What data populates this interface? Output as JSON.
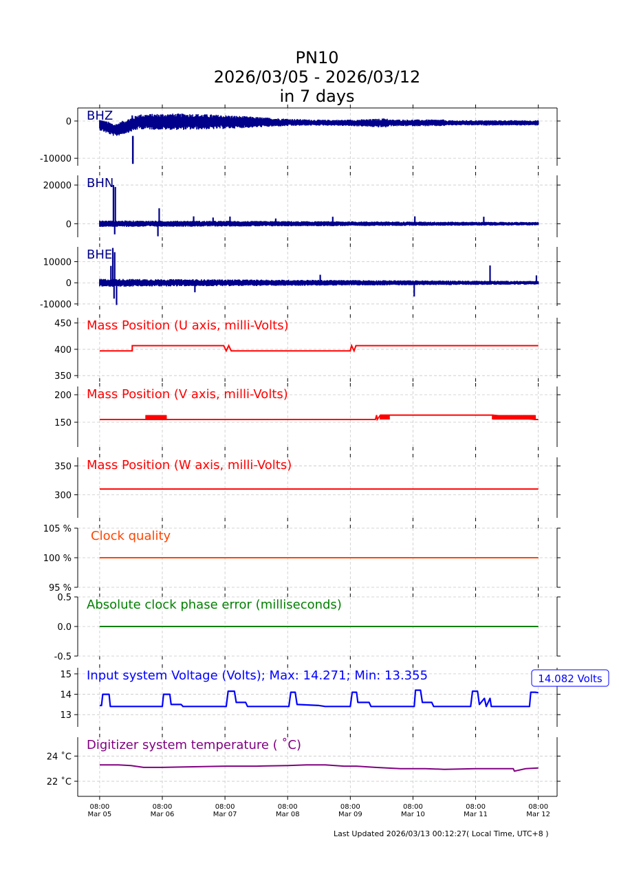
{
  "header": {
    "station": "PN10",
    "date_range": "2026/03/05 - 2026/03/12",
    "period": "in 7 days"
  },
  "footer": {
    "updated": "Last Updated 2026/03/13 00:12:27( Local Time, UTC+8 )"
  },
  "chart_data": [
    {
      "type": "line",
      "title": "BHZ",
      "ylim": [
        -12000,
        3500
      ],
      "yticks": [
        0,
        -10000
      ],
      "ytick_labels": [
        "0",
        "-10000"
      ],
      "color": "#00008b",
      "label_color": "#00008b",
      "grid": true,
      "style": "seismic",
      "baseline": -1000,
      "spikes": [
        [
          0.27,
          -2600
        ],
        [
          0.52,
          1500
        ],
        [
          0.73,
          1300
        ],
        [
          0.81,
          1200
        ],
        [
          0.95,
          900
        ],
        [
          1.0,
          1200
        ],
        [
          0.9,
          900
        ]
      ],
      "envelope_note": "waveform amplitude approx ±2000 counts, dip to -11500 near Mar 05 12:00"
    },
    {
      "type": "line",
      "title": "BHN",
      "ylim": [
        -7000,
        25000
      ],
      "yticks": [
        20000,
        0
      ],
      "ytick_labels": [
        "20000",
        "0"
      ],
      "color": "#00008b",
      "label_color": "#00008b",
      "grid": true,
      "style": "seismic",
      "baseline": 0,
      "spikes": [
        [
          0.22,
          20000
        ],
        [
          0.25,
          19000
        ],
        [
          0.24,
          -5500
        ],
        [
          0.95,
          8000
        ],
        [
          0.93,
          -6500
        ],
        [
          1.5,
          3800
        ],
        [
          1.81,
          3200
        ],
        [
          2.08,
          3700
        ],
        [
          2.81,
          2700
        ],
        [
          3.72,
          3600
        ],
        [
          5.03,
          3800
        ],
        [
          6.13,
          3600
        ]
      ]
    },
    {
      "type": "line",
      "title": "BHE",
      "ylim": [
        -11000,
        17000
      ],
      "yticks": [
        10000,
        0,
        -10000
      ],
      "ytick_labels": [
        "10000",
        "0",
        "-10000"
      ],
      "color": "#00008b",
      "label_color": "#00008b",
      "grid": true,
      "style": "seismic",
      "baseline": 0,
      "spikes": [
        [
          0.21,
          16500
        ],
        [
          0.18,
          8000
        ],
        [
          0.27,
          -10500
        ],
        [
          0.24,
          14500
        ],
        [
          0.23,
          -7500
        ],
        [
          1.52,
          -4500
        ],
        [
          3.52,
          3800
        ],
        [
          5.02,
          -6500
        ],
        [
          6.23,
          8200
        ],
        [
          6.97,
          3500
        ]
      ]
    },
    {
      "type": "line",
      "title": "Mass Position (U axis, milli-Volts)",
      "ylim": [
        345,
        460
      ],
      "yticks": [
        450,
        400,
        350
      ],
      "ytick_labels": [
        "450",
        "400",
        "350"
      ],
      "color": "#ff0000",
      "label_color": "#ff0000",
      "grid": true,
      "style": "step",
      "x": [
        0,
        0.52,
        0.52,
        1.98,
        2.02,
        2.06,
        2.1,
        2.14,
        4.0,
        4.02,
        4.06,
        4.09,
        7.0
      ],
      "y": [
        397,
        397,
        407,
        407,
        397,
        407,
        397,
        397,
        397,
        407,
        397,
        407,
        407
      ]
    },
    {
      "type": "line",
      "title": "Mass Position (V axis, milli-Volts)",
      "ylim": [
        105,
        215
      ],
      "yticks": [
        200,
        150
      ],
      "ytick_labels": [
        "200",
        "150"
      ],
      "color": "#ff0000",
      "label_color": "#ff0000",
      "grid": true,
      "style": "step",
      "x": [
        0,
        0.74,
        1.06,
        4.4,
        4.42,
        4.43,
        4.48,
        4.6,
        6.27,
        6.95,
        7.0
      ],
      "y": [
        155,
        155,
        155,
        155,
        163,
        155,
        163,
        163,
        163,
        155,
        155
      ],
      "noise_windows": [
        [
          0.74,
          1.06
        ],
        [
          4.48,
          4.62
        ],
        [
          6.27,
          6.95
        ]
      ]
    },
    {
      "type": "line",
      "title": "Mass Position (W axis, milli-Volts)",
      "ylim": [
        260,
        365
      ],
      "yticks": [
        350,
        300
      ],
      "ytick_labels": [
        "350",
        "300"
      ],
      "color": "#ff0000",
      "label_color": "#ff0000",
      "grid": true,
      "style": "step",
      "x": [
        0,
        7.0
      ],
      "y": [
        310,
        310
      ]
    },
    {
      "type": "line",
      "title": "Clock quality",
      "ylim": [
        95,
        105
      ],
      "yticks": [
        105,
        100,
        95
      ],
      "ytick_labels": [
        "105 %",
        "100 %",
        "95 %"
      ],
      "color": "#ff4500",
      "label_color": "#ff4500",
      "grid": true,
      "style": "step",
      "x": [
        0,
        7.0
      ],
      "y": [
        100,
        100
      ]
    },
    {
      "type": "line",
      "title": "Absolute clock phase error (milliseconds)",
      "ylim": [
        -0.5,
        0.5
      ],
      "yticks": [
        0.5,
        0.0,
        -0.5
      ],
      "ytick_labels": [
        "0.5",
        "0.0",
        "-0.5"
      ],
      "color": "#008000",
      "label_color": "#008000",
      "grid": true,
      "style": "step",
      "x": [
        0,
        7.0
      ],
      "y": [
        0,
        0
      ]
    },
    {
      "type": "line",
      "title": "Input system Voltage (Volts);    Max: 14.271; Min: 13.355",
      "annotation": "14.082 Volts",
      "ylim": [
        12.4,
        15.3
      ],
      "yticks": [
        15,
        14,
        13
      ],
      "ytick_labels": [
        "15",
        "14",
        "13"
      ],
      "color": "#0000ff",
      "label_color": "#0000ff",
      "grid": true,
      "style": "voltage",
      "x": [
        0,
        0.03,
        0.05,
        0.15,
        0.17,
        1.0,
        1.02,
        1.12,
        1.14,
        1.3,
        1.33,
        2.02,
        2.05,
        2.15,
        2.18,
        2.33,
        2.36,
        3.02,
        3.05,
        3.12,
        3.15,
        3.5,
        3.6,
        4.0,
        4.03,
        4.1,
        4.12,
        4.3,
        4.33,
        5.02,
        5.04,
        5.12,
        5.15,
        5.3,
        5.33,
        5.92,
        5.95,
        6.03,
        6.06,
        6.14,
        6.17,
        6.23,
        6.25,
        6.86,
        6.88,
        6.95,
        7.0
      ],
      "y": [
        13.45,
        13.45,
        14.0,
        14.0,
        13.4,
        13.4,
        14.0,
        14.0,
        13.5,
        13.5,
        13.4,
        13.4,
        14.15,
        14.15,
        13.6,
        13.6,
        13.4,
        13.4,
        14.1,
        14.1,
        13.5,
        13.45,
        13.4,
        13.4,
        14.1,
        14.1,
        13.6,
        13.6,
        13.4,
        13.4,
        14.2,
        14.2,
        13.6,
        13.6,
        13.4,
        13.4,
        14.15,
        14.15,
        13.5,
        13.8,
        13.4,
        13.8,
        13.4,
        13.4,
        14.1,
        14.1,
        14.08
      ]
    },
    {
      "type": "line",
      "title": "Digitizer system temperature ( ˚C)",
      "ylim": [
        20.8,
        25.5
      ],
      "yticks": [
        24,
        22
      ],
      "ytick_labels": [
        "24 ˚C",
        "22 ˚C"
      ],
      "color": "#800080",
      "label_color": "#800080",
      "grid": true,
      "style": "step",
      "x": [
        0,
        0.3,
        0.5,
        0.7,
        1.0,
        1.5,
        2.0,
        2.5,
        3.0,
        3.3,
        3.6,
        3.9,
        4.1,
        4.4,
        4.8,
        5.2,
        5.5,
        6.0,
        6.5,
        6.6,
        6.62,
        6.8,
        7.0
      ],
      "y": [
        23.3,
        23.3,
        23.25,
        23.1,
        23.1,
        23.15,
        23.2,
        23.2,
        23.25,
        23.3,
        23.3,
        23.2,
        23.2,
        23.1,
        23.0,
        23.0,
        22.95,
        23.0,
        23.0,
        23.0,
        22.8,
        23.0,
        23.05
      ]
    }
  ],
  "x_axis": {
    "ticks": [
      0,
      1,
      2,
      3,
      4,
      5,
      6,
      7
    ],
    "tick_time": [
      "08:00",
      "08:00",
      "08:00",
      "08:00",
      "08:00",
      "08:00",
      "08:00",
      "08:00"
    ],
    "tick_date": [
      "Mar 05",
      "Mar 06",
      "Mar 07",
      "Mar 08",
      "Mar 09",
      "Mar 10",
      "Mar 11",
      "Mar 12"
    ],
    "xlim": [
      -0.35,
      7.3
    ]
  }
}
